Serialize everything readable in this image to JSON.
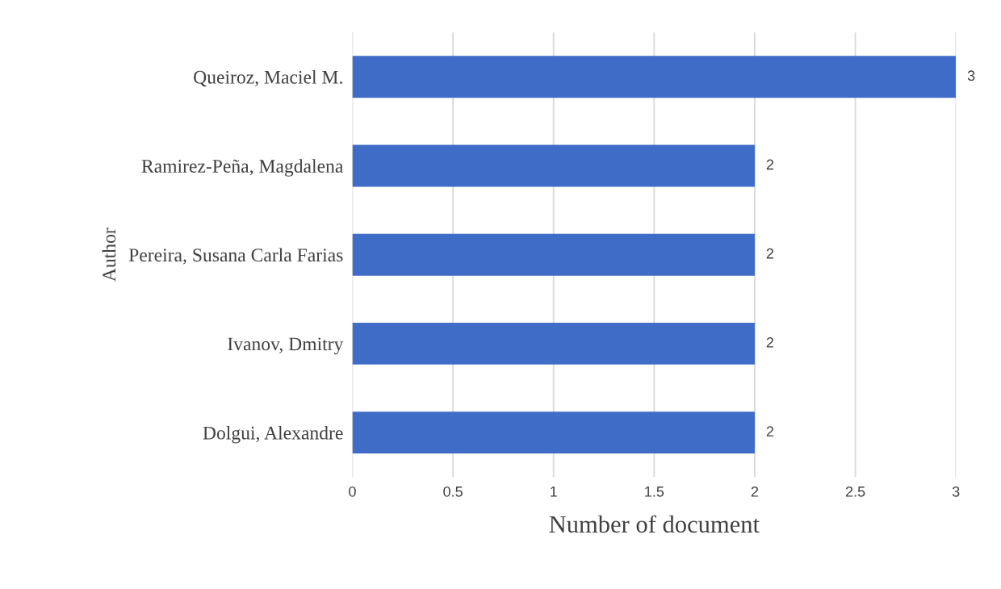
{
  "chart_data": {
    "type": "bar",
    "orientation": "horizontal",
    "xlabel": "Number of document",
    "ylabel": "Author",
    "categories": [
      "Queiroz, Maciel M.",
      "Ramirez-Peña, Magdalena",
      "Pereira, Susana Carla Farias",
      "Ivanov, Dmitry",
      "Dolgui, Alexandre"
    ],
    "values": [
      3,
      2,
      2,
      2,
      2
    ],
    "color": "#3f6cc6",
    "xlim": [
      0,
      3
    ],
    "xticks": [
      0,
      0.5,
      1,
      1.5,
      2,
      2.5,
      3
    ],
    "grid": "x",
    "data_labels": true
  }
}
